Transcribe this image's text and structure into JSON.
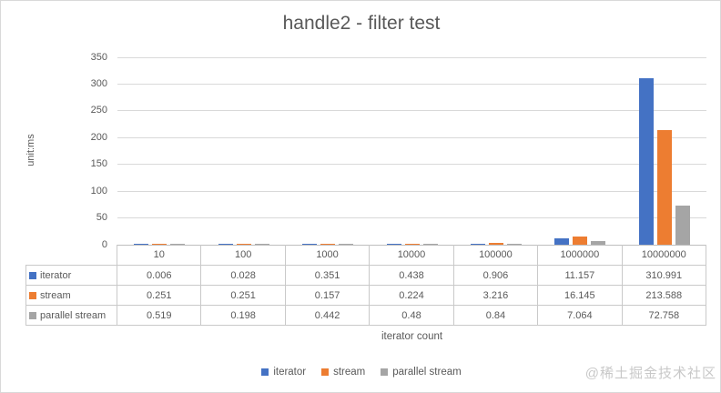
{
  "title": "handle2 - filter test",
  "watermark": "@稀土掘金技术社区",
  "chart_data": {
    "type": "bar",
    "title": "handle2 - filter test",
    "categories": [
      "10",
      "100",
      "1000",
      "10000",
      "100000",
      "1000000",
      "10000000"
    ],
    "series": [
      {
        "name": "iterator",
        "color": "#4472C4",
        "values": [
          0.006,
          0.028,
          0.351,
          0.438,
          0.906,
          11.157,
          310.991
        ]
      },
      {
        "name": "stream",
        "color": "#ED7D31",
        "values": [
          0.251,
          0.251,
          0.157,
          0.224,
          3.216,
          16.145,
          213.588
        ]
      },
      {
        "name": "parallel stream",
        "color": "#A5A5A5",
        "values": [
          0.519,
          0.198,
          0.442,
          0.48,
          0.84,
          7.064,
          72.758
        ]
      }
    ],
    "xlabel": "iterator count",
    "ylabel": "unit:ms",
    "ylim": [
      0,
      350
    ],
    "ytick_step": 50,
    "grid": true,
    "legend_position": "bottom",
    "data_table": true
  }
}
